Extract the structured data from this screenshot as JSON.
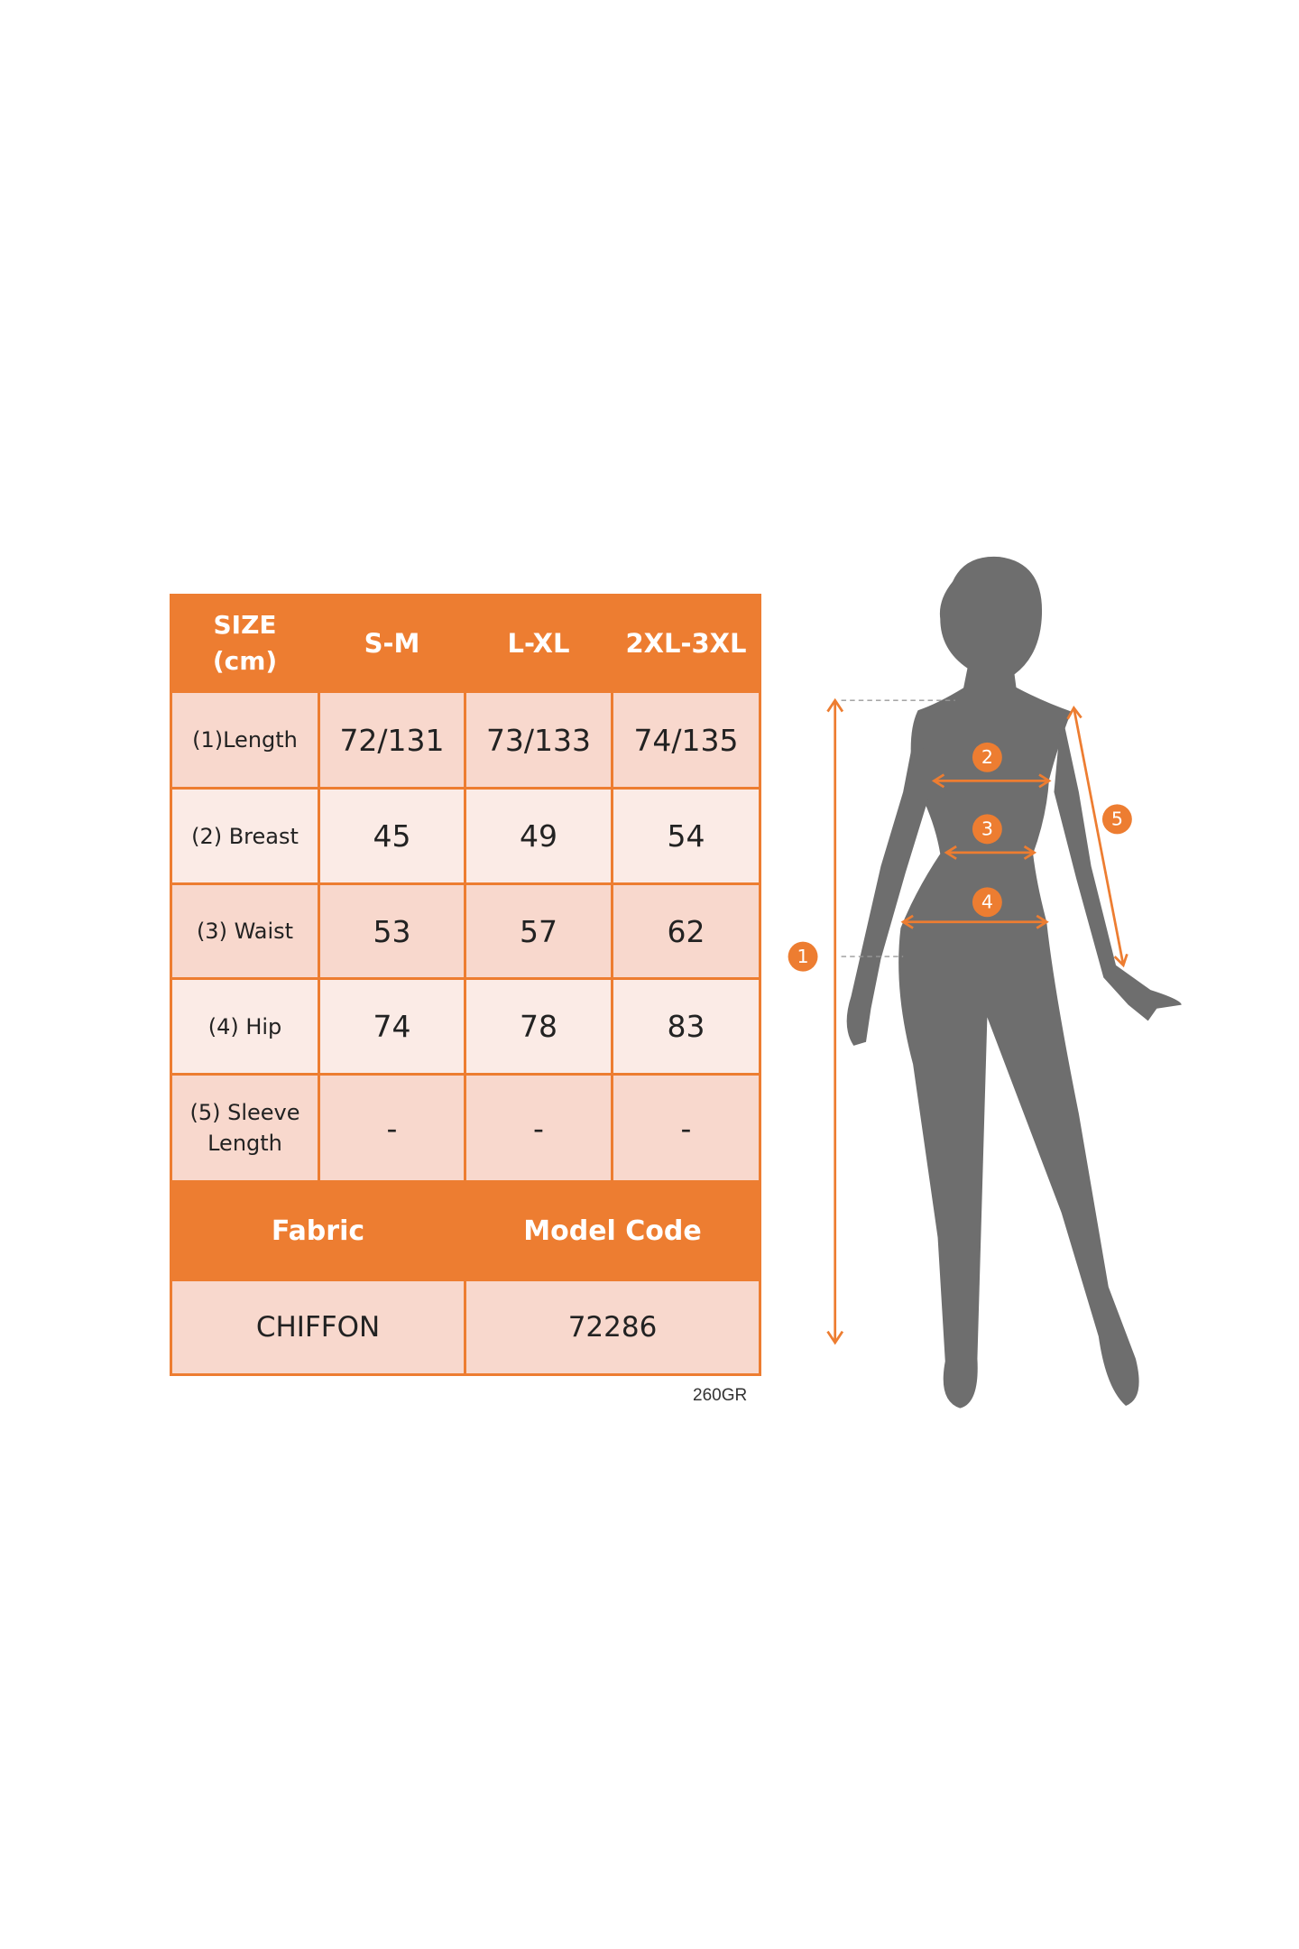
{
  "table": {
    "header": [
      "SIZE\n(cm)",
      "S-M",
      "L-XL",
      "2XL-3XL"
    ],
    "header_size_line1": "SIZE",
    "header_size_line2": "(cm)",
    "rows": [
      {
        "label": "(1)Length",
        "values": [
          "72/131",
          "73/133",
          "74/135"
        ]
      },
      {
        "label": "(2) Breast",
        "values": [
          "45",
          "49",
          "54"
        ]
      },
      {
        "label": "(3) Waist",
        "values": [
          "53",
          "57",
          "62"
        ]
      },
      {
        "label": "(4) Hip",
        "values": [
          "74",
          "78",
          "83"
        ]
      },
      {
        "label_line1": "(5) Sleeve",
        "label_line2": "Length",
        "values": [
          "-",
          "-",
          "-"
        ]
      }
    ],
    "fabric_label": "Fabric",
    "model_code_label": "Model Code",
    "fabric_value": "CHIFFON",
    "model_code_value": "72286"
  },
  "weight": "260GR",
  "figure": {
    "markers": [
      "1",
      "2",
      "3",
      "4",
      "5"
    ]
  },
  "colors": {
    "accent": "#ed7d31",
    "cell_dark": "#f8d8cd",
    "cell_light": "#fbebe6",
    "silhouette": "#6e6e6e"
  }
}
